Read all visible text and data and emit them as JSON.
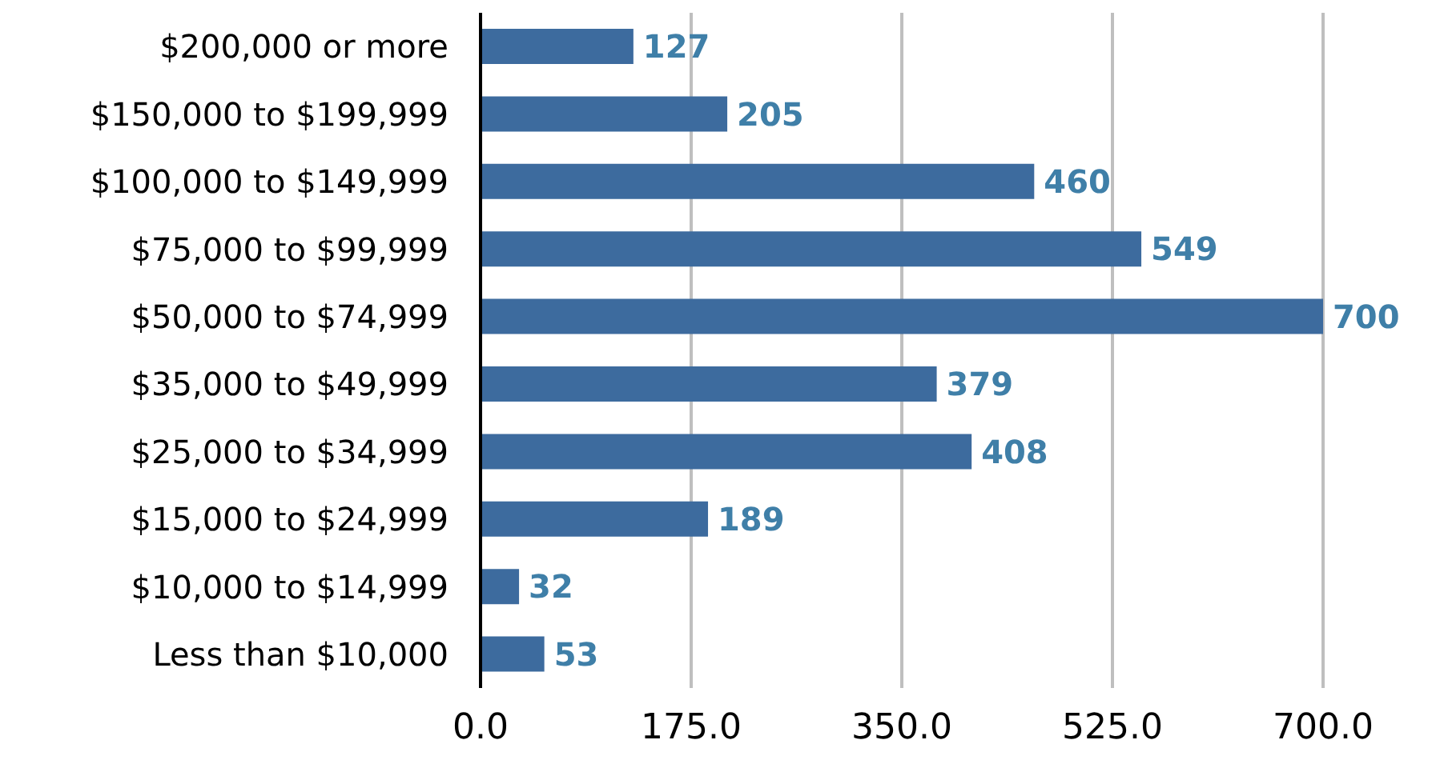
{
  "chart_data": {
    "type": "bar",
    "orientation": "horizontal",
    "categories": [
      "$200,000 or more",
      "$150,000 to $199,999",
      "$100,000 to $149,999",
      "$75,000 to $99,999",
      "$50,000 to $74,999",
      "$35,000 to $49,999",
      "$25,000 to $34,999",
      "$15,000 to $24,999",
      "$10,000 to $14,999",
      "Less than $10,000"
    ],
    "values": [
      127,
      205,
      460,
      549,
      700,
      379,
      408,
      189,
      32,
      53
    ],
    "color": "#3d6b9e",
    "xlim": [
      0,
      700
    ],
    "xticks": [
      {
        "value": 0,
        "label": "0.0"
      },
      {
        "value": 175,
        "label": "175.0"
      },
      {
        "value": 350,
        "label": "350.0"
      },
      {
        "value": 525,
        "label": "525.0"
      },
      {
        "value": 700,
        "label": "700.0"
      }
    ],
    "grid": "x",
    "data_labels": true,
    "legend": false
  }
}
